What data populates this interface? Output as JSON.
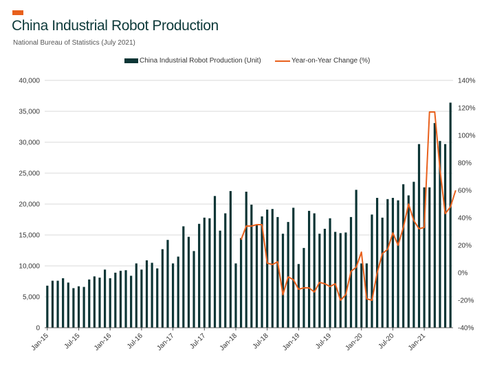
{
  "header": {
    "title": "China Industrial Robot Production",
    "subtitle": "National Bureau of Statistics (July 2021)"
  },
  "colors": {
    "bars": "#0c3535",
    "line": "#e8601c",
    "accent": "#e8601c",
    "grid": "#d9d9d9"
  },
  "chart_data": {
    "type": "bar",
    "title": "China Industrial Robot Production",
    "subtitle": "National Bureau of Statistics (July 2021)",
    "legend_position": "top-center",
    "grid": true,
    "x_tick_labels": [
      "Jan-15",
      "Jul-15",
      "Jan-16",
      "Jul-16",
      "Jan-17",
      "Jul-17",
      "Jan-18",
      "Jul-18",
      "Jan-19",
      "Jul-19",
      "Jan-20",
      "Jul-20",
      "Jan-21"
    ],
    "left_axis": {
      "ylim": [
        0,
        40000
      ],
      "ticks": [
        "0",
        "5,000",
        "10,000",
        "15,000",
        "20,000",
        "25,000",
        "30,000",
        "35,000",
        "40,000"
      ]
    },
    "right_axis": {
      "ylim": [
        -40,
        140
      ],
      "ticks": [
        "-40%",
        "-20%",
        "0%",
        "20%",
        "40%",
        "60%",
        "80%",
        "100%",
        "120%",
        "140%"
      ]
    },
    "series": [
      {
        "name": "China Industrial Robot Production (Unit)",
        "kind": "bar",
        "axis": "left",
        "values": [
          6800,
          7600,
          7600,
          8000,
          7300,
          6400,
          6700,
          6600,
          7800,
          8300,
          8100,
          9400,
          8000,
          8900,
          9200,
          9300,
          8400,
          10400,
          9400,
          10900,
          10500,
          9600,
          12700,
          14200,
          10400,
          11500,
          16400,
          14700,
          12400,
          16800,
          17800,
          17700,
          21300,
          15700,
          18500,
          22100,
          10400,
          14500,
          22000,
          19900,
          16700,
          18000,
          19100,
          19200,
          17900,
          15200,
          17100,
          19400,
          10300,
          12900,
          18900,
          18500,
          15200,
          16000,
          17700,
          15500,
          15300,
          15400,
          17900,
          22300,
          10400,
          10400,
          18300,
          21000,
          17800,
          20800,
          21000,
          20600,
          23200,
          21400,
          23600,
          29700,
          22700,
          22700,
          33100,
          30200,
          29700,
          36400
        ]
      },
      {
        "name": "Year-on-Year Change (%)",
        "kind": "line",
        "axis": "right",
        "start_index": 37,
        "values": [
          24,
          34,
          34,
          35,
          35,
          7,
          6,
          8,
          -16,
          -3,
          -5,
          -12,
          -11,
          -11,
          -14,
          -7,
          -8,
          -10,
          -8,
          -20,
          -16,
          1,
          4,
          15,
          -19,
          -20,
          0,
          14,
          17,
          29,
          20,
          33,
          50,
          38,
          32,
          33,
          117,
          117,
          75,
          43,
          48,
          60
        ]
      }
    ]
  }
}
